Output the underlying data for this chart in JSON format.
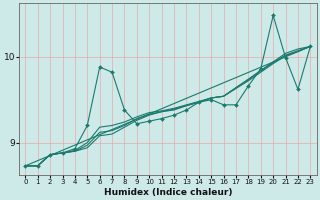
{
  "xlabel": "Humidex (Indice chaleur)",
  "bg_color": "#ceeae8",
  "grid_color": "#e8aaaa",
  "line_color": "#1a7a6e",
  "xlim": [
    -0.5,
    23.5
  ],
  "ylim": [
    8.62,
    10.62
  ],
  "xticks": [
    0,
    1,
    2,
    3,
    4,
    5,
    6,
    7,
    8,
    9,
    10,
    11,
    12,
    13,
    14,
    15,
    16,
    17,
    18,
    19,
    20,
    21,
    22,
    23
  ],
  "yticks": [
    9,
    10
  ],
  "series": [
    [
      8.73,
      8.73,
      8.86,
      8.88,
      8.9,
      8.94,
      9.08,
      9.1,
      9.18,
      9.26,
      9.32,
      9.36,
      9.38,
      9.43,
      9.47,
      9.52,
      9.54,
      9.64,
      9.74,
      9.84,
      9.94,
      10.04,
      10.09,
      10.12
    ],
    [
      8.73,
      8.73,
      8.86,
      8.88,
      8.9,
      8.97,
      9.12,
      9.14,
      9.2,
      9.28,
      9.33,
      9.36,
      9.39,
      9.43,
      9.47,
      9.52,
      9.54,
      9.64,
      9.73,
      9.84,
      9.93,
      10.02,
      10.07,
      10.12
    ],
    [
      8.73,
      8.73,
      8.86,
      8.88,
      8.91,
      9.0,
      9.18,
      9.2,
      9.24,
      9.3,
      9.35,
      9.37,
      9.4,
      9.44,
      9.48,
      9.52,
      9.54,
      9.63,
      9.72,
      9.82,
      9.92,
      10.01,
      10.06,
      10.12
    ],
    [
      8.73,
      8.73,
      8.86,
      8.88,
      8.93,
      9.2,
      9.88,
      9.82,
      9.38,
      9.22,
      9.25,
      9.28,
      9.32,
      9.38,
      9.47,
      9.5,
      9.44,
      9.44,
      9.66,
      9.86,
      10.48,
      9.99,
      9.62,
      10.12
    ]
  ],
  "trend_line": [
    8.73,
    10.12
  ]
}
